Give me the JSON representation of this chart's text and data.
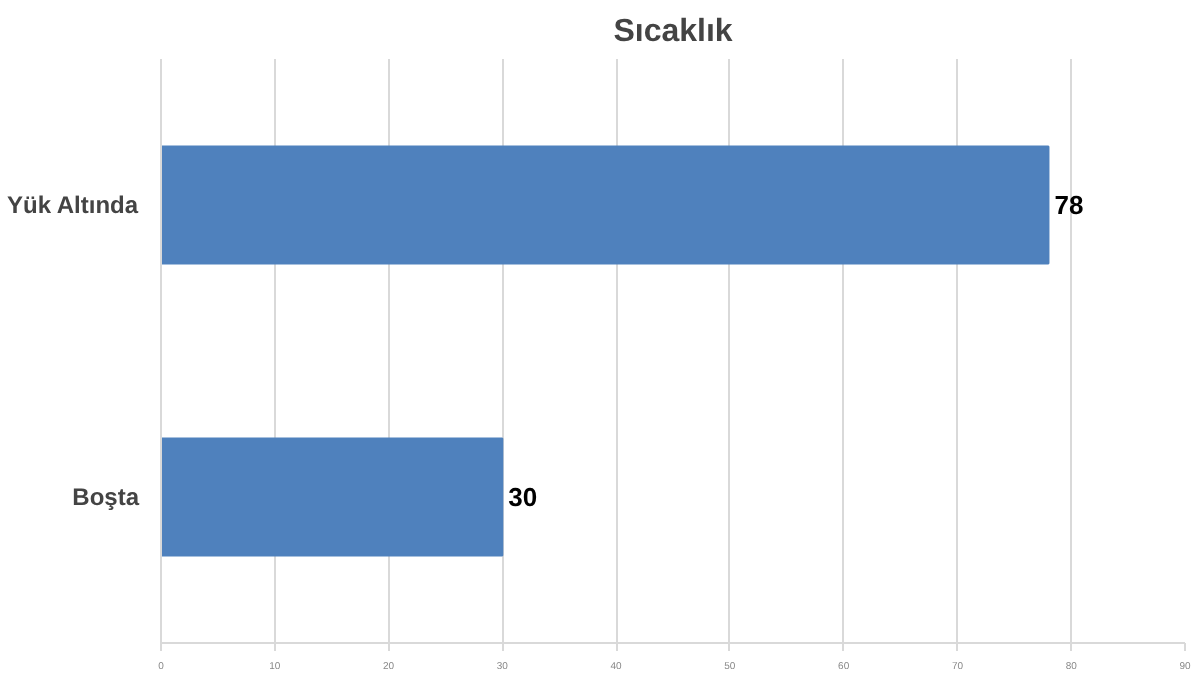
{
  "chart_data": {
    "type": "bar",
    "orientation": "horizontal",
    "title": "Sıcaklık",
    "categories": [
      "Yük Altında",
      "Boşta"
    ],
    "values": [
      78,
      30
    ],
    "color": "#4f81bd",
    "xlim": [
      0,
      90
    ],
    "xticks": [
      0,
      10,
      20,
      30,
      40,
      50,
      60,
      70,
      80,
      90
    ],
    "grid": "x",
    "data_labels": true
  }
}
